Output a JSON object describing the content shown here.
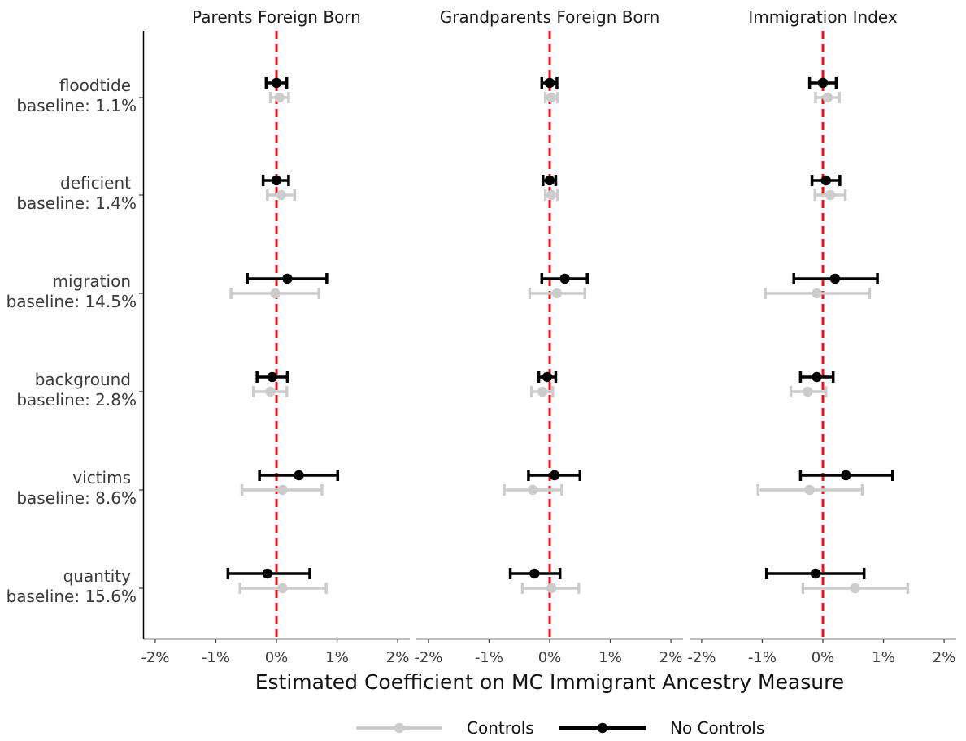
{
  "chart_data": {
    "type": "scatter",
    "subtype": "coefficient-plot-with-error-bars",
    "xlabel": "Estimated Coefficient on MC Immigrant Ancestry Measure",
    "xlim": [
      -0.022,
      0.022
    ],
    "xticks": [
      -0.02,
      -0.01,
      0.0,
      0.01,
      0.02
    ],
    "xtick_labels": [
      "-2%",
      "-1%",
      "0%",
      "1%",
      "2%"
    ],
    "reference_line": {
      "x": 0,
      "color": "#e8141b",
      "style": "dashed"
    },
    "grid": false,
    "legend_position": "bottom",
    "rows": [
      {
        "word": "floodtide",
        "baseline": "baseline: 1.1%"
      },
      {
        "word": "deficient",
        "baseline": "baseline: 1.4%"
      },
      {
        "word": "migration",
        "baseline": "baseline: 14.5%"
      },
      {
        "word": "background",
        "baseline": "baseline: 2.8%"
      },
      {
        "word": "victims",
        "baseline": "baseline: 8.6%"
      },
      {
        "word": "quantity",
        "baseline": "baseline: 15.6%"
      }
    ],
    "series": [
      {
        "name": "Controls",
        "color": "#cccccc"
      },
      {
        "name": "No Controls",
        "color": "#000000"
      }
    ],
    "facets": [
      {
        "title": "Parents Foreign Born",
        "points": [
          {
            "row": 0,
            "controls": [
              0.0005,
              -0.001,
              0.002
            ],
            "no_controls": [
              0.0,
              -0.0017,
              0.0017
            ]
          },
          {
            "row": 1,
            "controls": [
              0.0008,
              -0.0015,
              0.003
            ],
            "no_controls": [
              0.0,
              -0.0022,
              0.002
            ]
          },
          {
            "row": 2,
            "controls": [
              -0.0002,
              -0.0075,
              0.007
            ],
            "no_controls": [
              0.0018,
              -0.0048,
              0.0083
            ]
          },
          {
            "row": 3,
            "controls": [
              -0.001,
              -0.0038,
              0.0017
            ],
            "no_controls": [
              -0.0007,
              -0.0032,
              0.0018
            ]
          },
          {
            "row": 4,
            "controls": [
              0.001,
              -0.0057,
              0.0075
            ],
            "no_controls": [
              0.0037,
              -0.0028,
              0.0101
            ]
          },
          {
            "row": 5,
            "controls": [
              0.001,
              -0.006,
              0.0082
            ],
            "no_controls": [
              -0.0015,
              -0.008,
              0.0055
            ]
          }
        ]
      },
      {
        "title": "Grandparents Foreign Born",
        "points": [
          {
            "row": 0,
            "controls": [
              0.0003,
              -0.0007,
              0.0013
            ],
            "no_controls": [
              0.0,
              -0.0013,
              0.0012
            ]
          },
          {
            "row": 1,
            "controls": [
              0.0003,
              -0.0007,
              0.0013
            ],
            "no_controls": [
              0.0,
              -0.0011,
              0.001
            ]
          },
          {
            "row": 2,
            "controls": [
              0.0012,
              -0.0033,
              0.0058
            ],
            "no_controls": [
              0.0025,
              -0.0013,
              0.0062
            ]
          },
          {
            "row": 3,
            "controls": [
              -0.0012,
              -0.003,
              0.0005
            ],
            "no_controls": [
              -0.0004,
              -0.0018,
              0.001
            ]
          },
          {
            "row": 4,
            "controls": [
              -0.0028,
              -0.0075,
              0.002
            ],
            "no_controls": [
              0.0008,
              -0.0035,
              0.005
            ]
          },
          {
            "row": 5,
            "controls": [
              0.0003,
              -0.0045,
              0.0048
            ],
            "no_controls": [
              -0.0025,
              -0.0065,
              0.0017
            ]
          }
        ]
      },
      {
        "title": "Immigration Index",
        "points": [
          {
            "row": 0,
            "controls": [
              0.0008,
              -0.0012,
              0.0027
            ],
            "no_controls": [
              0.0,
              -0.0022,
              0.0022
            ]
          },
          {
            "row": 1,
            "controls": [
              0.0012,
              -0.0013,
              0.0037
            ],
            "no_controls": [
              0.0005,
              -0.0018,
              0.0028
            ]
          },
          {
            "row": 2,
            "controls": [
              -0.001,
              -0.0095,
              0.0077
            ],
            "no_controls": [
              0.002,
              -0.0048,
              0.009
            ]
          },
          {
            "row": 3,
            "controls": [
              -0.0025,
              -0.0053,
              0.0005
            ],
            "no_controls": [
              -0.001,
              -0.0037,
              0.0017
            ]
          },
          {
            "row": 4,
            "controls": [
              -0.0022,
              -0.0107,
              0.0065
            ],
            "no_controls": [
              0.0038,
              -0.0037,
              0.0115
            ]
          },
          {
            "row": 5,
            "controls": [
              0.0053,
              -0.0033,
              0.014
            ],
            "no_controls": [
              -0.0012,
              -0.0093,
              0.0068
            ]
          }
        ]
      }
    ]
  }
}
